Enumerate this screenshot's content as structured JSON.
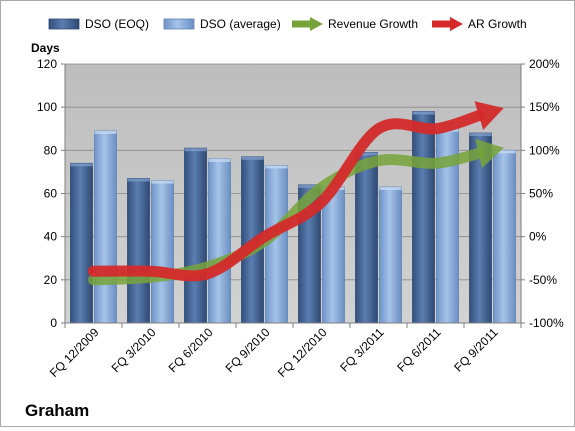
{
  "chart_data": {
    "type": "bar",
    "title": "",
    "company": "Graham",
    "ylabel": "Days",
    "y2label": "",
    "ylim": [
      0,
      120
    ],
    "y_ticks": [
      0,
      20,
      40,
      60,
      80,
      100,
      120
    ],
    "y2lim": [
      -100,
      200
    ],
    "y2_ticks": [
      "-100%",
      "-50%",
      "0%",
      "50%",
      "100%",
      "150%",
      "200%"
    ],
    "categories": [
      "FQ 12/2009",
      "FQ 3/2010",
      "FQ 6/2010",
      "FQ 9/2010",
      "FQ 12/2010",
      "FQ 3/2011",
      "FQ 6/2011",
      "FQ 9/2011"
    ],
    "series": [
      {
        "name": "DSO (EOQ)",
        "kind": "bar",
        "axis": "left",
        "color": "#4a6a9a",
        "values": [
          74,
          67,
          81,
          77,
          64,
          79,
          98,
          88
        ]
      },
      {
        "name": "DSO (average)",
        "kind": "bar",
        "axis": "left",
        "color": "#8fb1dd",
        "values": [
          89,
          66,
          76,
          73,
          63,
          63,
          90,
          80
        ]
      },
      {
        "name": "Revenue Growth",
        "kind": "arrow",
        "axis": "right",
        "color": "#77a33a",
        "values": [
          -50,
          -47,
          -35,
          -5,
          57,
          88,
          85,
          100
        ]
      },
      {
        "name": "AR Growth",
        "kind": "arrow",
        "axis": "right",
        "color": "#d42a2a",
        "values": [
          -40,
          -40,
          -43,
          0,
          40,
          125,
          125,
          145
        ]
      }
    ],
    "legend_position": "top",
    "grid": true,
    "plot_background": "#c6c6c6"
  }
}
